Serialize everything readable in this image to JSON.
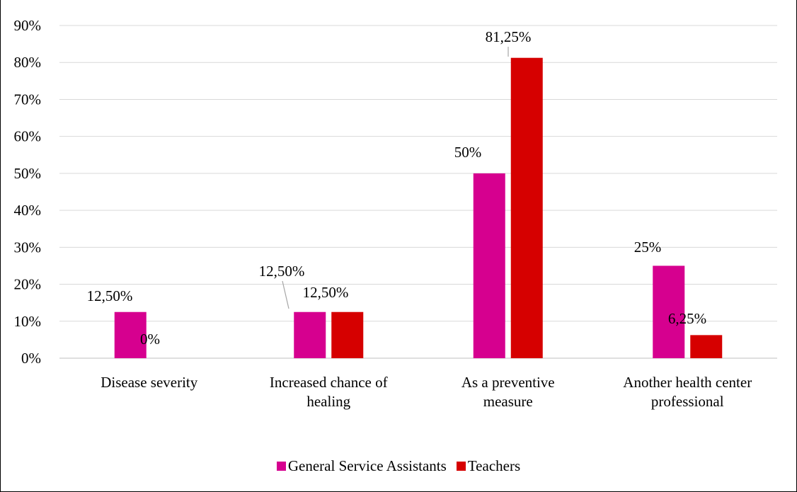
{
  "chart_data": {
    "type": "bar",
    "categories": [
      [
        "Disease severity"
      ],
      [
        "Increased chance of",
        "healing"
      ],
      [
        "As a preventive",
        "measure"
      ],
      [
        "Another health center",
        "professional"
      ]
    ],
    "series": [
      {
        "name": "General Service Assistants",
        "color": "#D6008F",
        "values": [
          12.5,
          12.5,
          50,
          25
        ],
        "labels": [
          "12,50%",
          "12,50%",
          "50%",
          "25%"
        ]
      },
      {
        "name": "Teachers",
        "color": "#D60000",
        "values": [
          0,
          12.5,
          81.25,
          6.25
        ],
        "labels": [
          "0%",
          "12,50%",
          "81,25%",
          "6,25%"
        ]
      }
    ],
    "yticks": [
      "0%",
      "10%",
      "20%",
      "30%",
      "40%",
      "50%",
      "60%",
      "70%",
      "80%",
      "90%"
    ],
    "ylim": [
      0,
      90
    ],
    "grid": true,
    "legend_position": "bottom",
    "title": "",
    "xlabel": "",
    "ylabel": ""
  }
}
